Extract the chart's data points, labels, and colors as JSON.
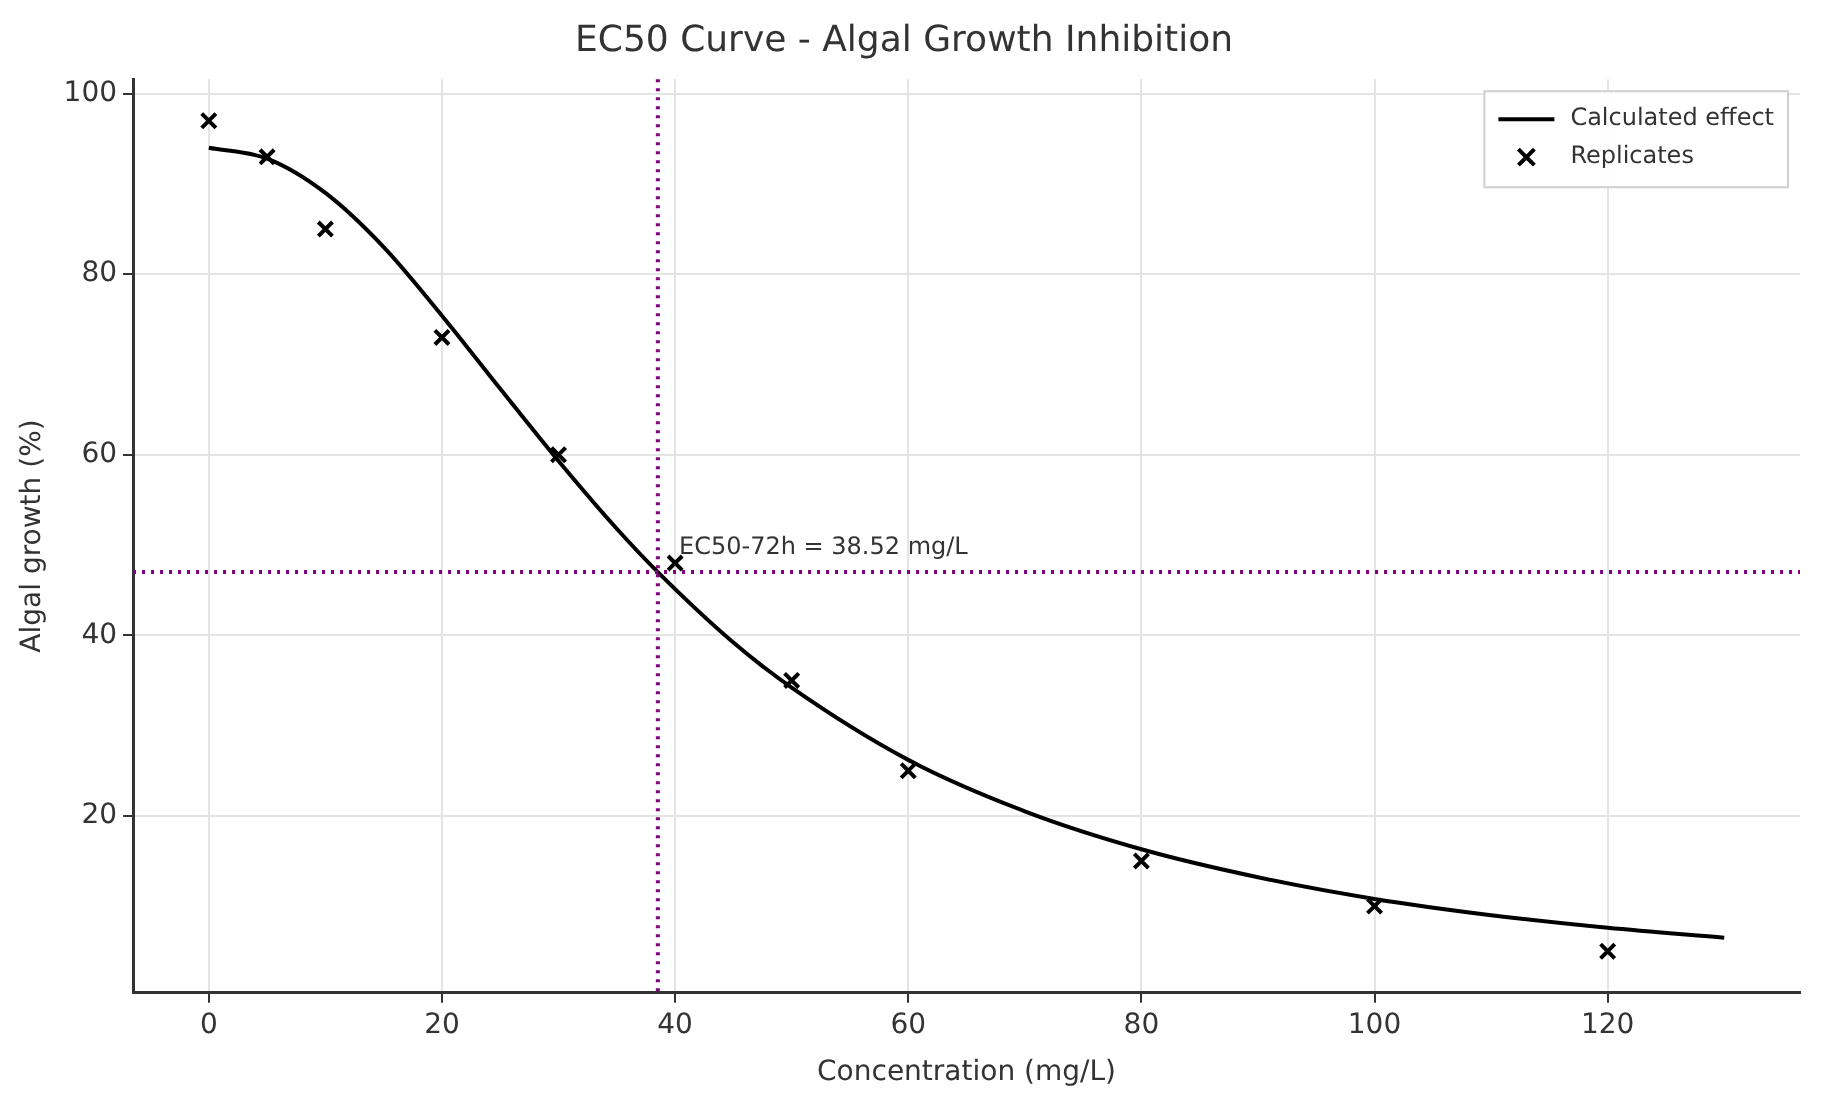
{
  "chart_data": {
    "type": "line",
    "title": "EC50 Curve - Algal Growth Inhibition",
    "xlabel": "Concentration (mg/L)",
    "ylabel": "Algal growth (%)",
    "series": [
      {
        "name": "Calculated effect",
        "type": "line",
        "color": "#000000",
        "marker": "none",
        "line_style": "solid",
        "x": [
          0,
          5,
          10,
          15,
          20,
          25,
          30,
          35,
          38.52,
          45,
          50,
          60,
          70,
          80,
          90,
          100,
          110,
          120,
          130
        ],
        "values": [
          94,
          92.8,
          89,
          83,
          75.4,
          67.3,
          59.3,
          51.8,
          47,
          39.2,
          34.2,
          26.2,
          20.5,
          16.3,
          13.2,
          10.8,
          9,
          7.6,
          6.5
        ]
      },
      {
        "name": "Replicates",
        "type": "scatter",
        "color": "#000000",
        "marker": "cross",
        "x": [
          0,
          5,
          10,
          20,
          30,
          40,
          50,
          60,
          80,
          100,
          120
        ],
        "values": [
          97,
          93,
          85,
          73,
          60,
          48,
          35,
          25,
          15,
          10,
          5
        ]
      }
    ],
    "xlim": [
      -6.5,
      136.5
    ],
    "xticks": [
      0,
      20,
      40,
      60,
      80,
      100,
      120
    ],
    "ylim": [
      0.4,
      101.6
    ],
    "yticks": [
      20,
      40,
      60,
      80,
      100
    ],
    "ref_lines": [
      {
        "axis": "x",
        "value": 38.52,
        "color": "#800080",
        "line_style": "dotted"
      },
      {
        "axis": "y",
        "value": 47,
        "color": "#800080",
        "line_style": "dotted"
      }
    ],
    "annotations": [
      {
        "text": "EC50-72h = 38.52 mg/L",
        "x": 40,
        "y": 49
      }
    ],
    "grid": true,
    "legend": "top right"
  }
}
